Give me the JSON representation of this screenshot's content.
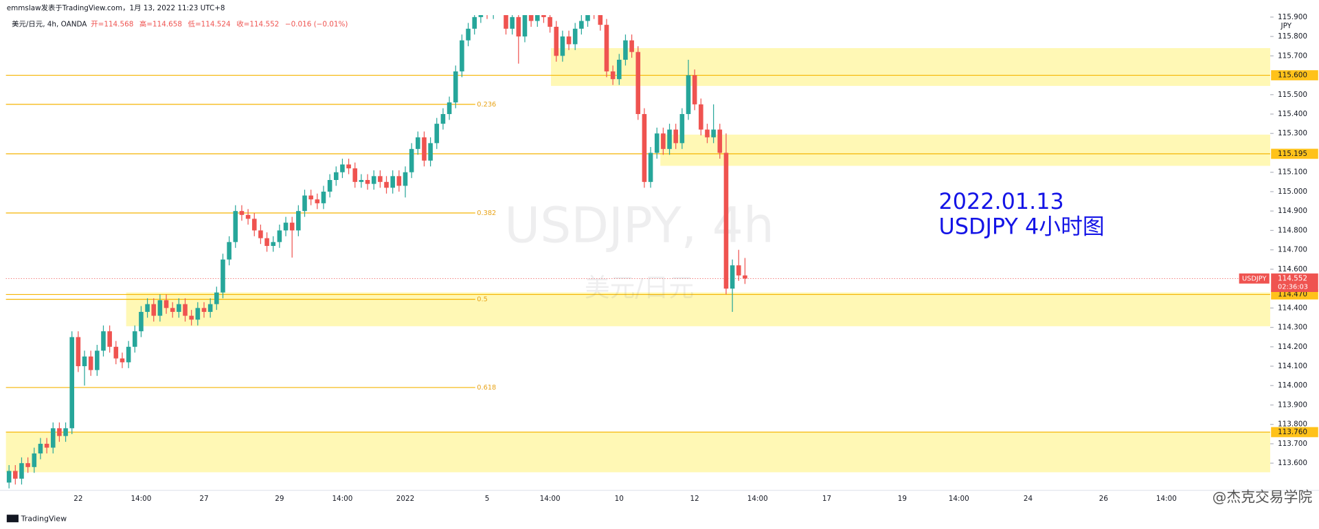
{
  "chart_data": {
    "type": "candlestick",
    "header": "emmslaw发表于TradingView.com，1月 13, 2022 11:23 UTC+8",
    "legend": "美元/日元, 4h, OANDA",
    "ohlc_labels": [
      "开=114.568",
      "高=114.658",
      "低=114.524",
      "收=114.552",
      "−0.016 (−0.01%)"
    ],
    "watermark": "USDJPY, 4h",
    "watermark_sub": "美元/日元",
    "annotations": [
      "2022.01.13",
      "USDJPY 4小时图"
    ],
    "axis_unit": "JPY",
    "footer": "TradingView",
    "credit": "@杰克交易学院",
    "up_color": "#26a69a",
    "down_color": "#ef5350",
    "level_color": "#f5b400",
    "zone_color": "#fff7a8",
    "categories": [
      null,
      null,
      null,
      null,
      null,
      null,
      null,
      null,
      null,
      null,
      null,
      "22",
      null,
      null,
      null,
      null,
      null,
      null,
      null,
      null,
      null,
      "14:00",
      null,
      null,
      null,
      null,
      null,
      null,
      null,
      null,
      null,
      "27",
      null,
      null,
      null,
      null,
      null,
      null,
      null,
      null,
      null,
      null,
      null,
      "29",
      null,
      null,
      null,
      null,
      null,
      null,
      null,
      null,
      null,
      "14:00",
      null,
      null,
      null,
      null,
      null,
      null,
      null,
      null,
      null,
      "2022",
      null,
      null,
      null,
      null,
      null,
      null,
      null,
      null,
      null,
      null,
      null,
      null,
      "5",
      null,
      null,
      null,
      null,
      null,
      null,
      null,
      null,
      null,
      "14:00",
      null,
      null,
      null,
      null,
      null,
      null,
      null,
      null,
      null,
      null,
      "10",
      null,
      null,
      null,
      null,
      null,
      null,
      null,
      null,
      null,
      null,
      null,
      "12",
      null,
      null,
      null,
      null,
      null,
      null,
      null,
      null,
      null,
      "14:00",
      null,
      null,
      null,
      null,
      null,
      null,
      null,
      null,
      null,
      null,
      "17",
      null,
      null,
      null,
      null,
      null,
      null,
      null,
      null,
      null,
      null,
      null,
      "19",
      null,
      null,
      null,
      null,
      null,
      null,
      null,
      null,
      "14:00",
      null,
      null,
      null,
      null,
      null,
      null,
      null,
      null,
      null,
      null,
      "24",
      null,
      null,
      null,
      null,
      null,
      null,
      null,
      null,
      null,
      null,
      null,
      "26",
      null,
      null,
      null,
      null,
      null,
      null,
      null,
      null,
      null,
      "14:00",
      null,
      null,
      null,
      null,
      null,
      null,
      null,
      null,
      null,
      null,
      null,
      null,
      null,
      null,
      null,
      null
    ],
    "open": [
      113.5,
      113.56,
      113.52,
      113.6,
      113.58,
      113.65,
      113.7,
      113.68,
      113.78,
      113.74,
      113.78,
      114.25,
      114.1,
      114.15,
      114.08,
      114.18,
      114.28,
      114.2,
      114.14,
      114.12,
      114.2,
      114.28,
      114.38,
      114.42,
      114.36,
      114.44,
      114.4,
      114.38,
      114.42,
      114.36,
      114.34,
      114.4,
      114.38,
      114.42,
      114.48,
      114.65,
      114.74,
      114.9,
      114.88,
      114.86,
      114.8,
      114.76,
      114.72,
      114.74,
      114.8,
      114.84,
      114.8,
      114.9,
      114.98,
      114.96,
      114.94,
      115.0,
      115.06,
      115.1,
      115.14,
      115.12,
      115.05,
      115.06,
      115.04,
      115.08,
      115.05,
      115.02,
      115.08,
      115.03,
      115.1,
      115.22,
      115.28,
      115.16,
      115.25,
      115.35,
      115.4,
      115.46,
      115.62,
      115.78,
      115.84,
      115.9,
      115.95,
      115.92,
      115.96,
      115.94,
      115.84,
      115.9,
      115.8,
      115.92,
      115.88,
      115.98,
      115.9,
      115.85,
      115.7,
      115.8,
      115.76,
      115.84,
      115.88,
      115.94,
      115.92,
      115.86,
      115.62,
      115.58,
      115.68,
      115.78,
      115.72,
      115.4,
      115.05,
      115.2,
      115.3,
      115.22,
      115.32,
      115.25,
      115.4,
      115.6,
      115.45,
      115.32,
      115.28,
      115.32,
      115.2,
      114.5,
      114.62,
      114.568,
      null,
      null,
      null,
      null,
      null,
      null,
      null,
      null,
      null,
      null,
      null,
      null,
      null,
      null,
      null,
      null,
      null,
      null,
      null,
      null,
      null,
      null,
      null,
      null,
      null,
      null,
      null,
      null,
      null,
      null,
      null,
      null,
      null,
      null,
      null,
      null,
      null,
      null,
      null,
      null,
      null,
      null,
      null,
      null,
      null,
      null,
      null,
      null,
      null,
      null,
      null,
      null,
      null,
      null,
      null,
      null,
      null,
      null,
      null,
      null,
      null,
      null,
      null,
      null,
      null,
      null,
      null,
      null,
      null,
      null,
      null,
      null,
      null,
      null,
      null,
      null,
      null,
      null,
      null,
      null,
      null,
      null,
      null
    ],
    "high": [
      113.59,
      113.59,
      113.63,
      113.63,
      113.68,
      113.73,
      113.73,
      113.81,
      113.81,
      113.81,
      114.28,
      114.28,
      114.18,
      114.18,
      114.21,
      114.31,
      114.31,
      114.23,
      114.17,
      114.23,
      114.31,
      114.41,
      114.45,
      114.45,
      114.47,
      114.47,
      114.43,
      114.45,
      114.45,
      114.39,
      114.43,
      114.43,
      114.45,
      114.51,
      114.68,
      114.77,
      114.93,
      114.93,
      114.91,
      114.89,
      114.83,
      114.79,
      114.77,
      114.83,
      114.87,
      114.87,
      114.93,
      115.01,
      115.01,
      114.99,
      115.03,
      115.09,
      115.13,
      115.17,
      115.17,
      115.15,
      115.09,
      115.09,
      115.11,
      115.11,
      115.08,
      115.11,
      115.11,
      115.13,
      115.25,
      115.31,
      115.31,
      115.28,
      115.38,
      115.43,
      115.49,
      115.65,
      115.81,
      115.87,
      115.93,
      115.98,
      115.98,
      115.99,
      115.99,
      115.97,
      115.93,
      115.93,
      115.95,
      115.95,
      116.01,
      116.01,
      115.93,
      115.88,
      115.83,
      115.83,
      115.87,
      115.91,
      115.97,
      115.97,
      115.95,
      115.89,
      115.65,
      115.71,
      115.81,
      115.81,
      115.75,
      115.43,
      115.23,
      115.33,
      115.33,
      115.35,
      115.35,
      115.43,
      115.68,
      115.63,
      115.48,
      115.35,
      115.45,
      115.35,
      115.3,
      114.65,
      114.7,
      114.658,
      null,
      null,
      null,
      null,
      null,
      null,
      null,
      null,
      null,
      null,
      null,
      null,
      null,
      null,
      null,
      null,
      null,
      null,
      null,
      null,
      null,
      null,
      null,
      null,
      null,
      null,
      null,
      null,
      null,
      null,
      null,
      null,
      null,
      null,
      null,
      null,
      null,
      null,
      null,
      null,
      null,
      null,
      null,
      null,
      null,
      null,
      null,
      null,
      null,
      null,
      null,
      null,
      null,
      null,
      null,
      null,
      null,
      null,
      null,
      null,
      null,
      null,
      null,
      null,
      null,
      null,
      null,
      null,
      null,
      null,
      null,
      null,
      null,
      null,
      null,
      null,
      null,
      null,
      null,
      null,
      null,
      null,
      null
    ],
    "low": [
      113.47,
      113.49,
      113.49,
      113.55,
      113.55,
      113.62,
      113.65,
      113.65,
      113.71,
      113.71,
      113.75,
      114.07,
      114.0,
      114.05,
      114.05,
      114.15,
      114.17,
      114.11,
      114.09,
      114.09,
      114.17,
      114.25,
      114.35,
      114.33,
      114.33,
      114.37,
      114.35,
      114.35,
      114.33,
      114.31,
      114.31,
      114.35,
      114.35,
      114.39,
      114.45,
      114.62,
      114.71,
      114.85,
      114.83,
      114.77,
      114.73,
      114.69,
      114.69,
      114.71,
      114.77,
      114.66,
      114.77,
      114.87,
      114.93,
      114.91,
      114.91,
      114.97,
      115.03,
      115.07,
      115.09,
      115.02,
      115.02,
      115.01,
      115.01,
      115.02,
      114.99,
      114.99,
      115.0,
      114.97,
      115.07,
      115.19,
      115.13,
      115.13,
      115.22,
      115.32,
      115.37,
      115.43,
      115.59,
      115.75,
      115.81,
      115.87,
      115.89,
      115.89,
      115.91,
      115.81,
      115.81,
      115.66,
      115.77,
      115.85,
      115.85,
      115.87,
      115.82,
      115.67,
      115.67,
      115.73,
      115.73,
      115.81,
      115.85,
      115.89,
      115.83,
      115.59,
      115.55,
      115.55,
      115.65,
      115.69,
      115.37,
      115.02,
      115.02,
      115.17,
      115.19,
      115.19,
      115.22,
      115.22,
      115.37,
      115.42,
      115.29,
      115.25,
      115.25,
      115.17,
      114.47,
      114.38,
      114.54,
      114.524,
      null,
      null,
      null,
      null,
      null,
      null,
      null,
      null,
      null,
      null,
      null,
      null,
      null,
      null,
      null,
      null,
      null,
      null,
      null,
      null,
      null,
      null,
      null,
      null,
      null,
      null,
      null,
      null,
      null,
      null,
      null,
      null,
      null,
      null,
      null,
      null,
      null,
      null,
      null,
      null,
      null,
      null,
      null,
      null,
      null,
      null,
      null,
      null,
      null,
      null,
      null,
      null,
      null,
      null,
      null,
      null,
      null,
      null,
      null,
      null,
      null,
      null,
      null,
      null,
      null,
      null,
      null,
      null,
      null,
      null,
      null,
      null,
      null,
      null,
      null,
      null,
      null,
      null,
      null,
      null,
      null,
      null,
      null
    ],
    "close": [
      113.56,
      113.52,
      113.6,
      113.58,
      113.65,
      113.7,
      113.68,
      113.78,
      113.74,
      113.78,
      114.25,
      114.1,
      114.15,
      114.08,
      114.18,
      114.28,
      114.2,
      114.14,
      114.12,
      114.2,
      114.28,
      114.38,
      114.42,
      114.36,
      114.44,
      114.4,
      114.38,
      114.42,
      114.36,
      114.34,
      114.4,
      114.38,
      114.42,
      114.48,
      114.65,
      114.74,
      114.9,
      114.88,
      114.86,
      114.8,
      114.76,
      114.72,
      114.74,
      114.8,
      114.84,
      114.8,
      114.9,
      114.98,
      114.96,
      114.94,
      115.0,
      115.06,
      115.1,
      115.14,
      115.12,
      115.05,
      115.06,
      115.04,
      115.08,
      115.05,
      115.02,
      115.08,
      115.03,
      115.1,
      115.22,
      115.28,
      115.16,
      115.25,
      115.35,
      115.4,
      115.46,
      115.62,
      115.78,
      115.84,
      115.9,
      115.95,
      115.92,
      115.96,
      115.94,
      115.84,
      115.9,
      115.8,
      115.92,
      115.88,
      115.98,
      115.9,
      115.85,
      115.7,
      115.8,
      115.76,
      115.84,
      115.88,
      115.94,
      115.92,
      115.86,
      115.62,
      115.58,
      115.68,
      115.78,
      115.72,
      115.4,
      115.05,
      115.2,
      115.3,
      115.22,
      115.32,
      115.25,
      115.4,
      115.6,
      115.45,
      115.32,
      115.28,
      115.32,
      115.2,
      114.5,
      114.62,
      114.568,
      114.552,
      null,
      null,
      null,
      null,
      null,
      null,
      null,
      null,
      null,
      null,
      null,
      null,
      null,
      null,
      null,
      null,
      null,
      null,
      null,
      null,
      null,
      null,
      null,
      null,
      null,
      null,
      null,
      null,
      null,
      null,
      null,
      null,
      null,
      null,
      null,
      null,
      null,
      null,
      null,
      null,
      null,
      null,
      null,
      null,
      null,
      null,
      null,
      null,
      null,
      null,
      null,
      null,
      null,
      null,
      null,
      null,
      null,
      null,
      null,
      null,
      null,
      null,
      null,
      null,
      null,
      null,
      null,
      null,
      null,
      null,
      null,
      null,
      null,
      null,
      null,
      null,
      null,
      null,
      null,
      null,
      null,
      null,
      null
    ],
    "ylim": [
      113.46,
      115.91
    ],
    "yticks": [
      {
        "value": 115.9,
        "label": "115.900"
      },
      {
        "value": 115.8,
        "label": "115.800"
      },
      {
        "value": 115.7,
        "label": "115.700"
      },
      {
        "value": 115.5,
        "label": "115.500"
      },
      {
        "value": 115.4,
        "label": "115.400"
      },
      {
        "value": 115.3,
        "label": "115.300"
      },
      {
        "value": 115.1,
        "label": "115.100"
      },
      {
        "value": 115.0,
        "label": "115.000"
      },
      {
        "value": 114.9,
        "label": "114.900"
      },
      {
        "value": 114.8,
        "label": "114.800"
      },
      {
        "value": 114.7,
        "label": "114.700"
      },
      {
        "value": 114.6,
        "label": "114.600"
      },
      {
        "value": 114.4,
        "label": "114.400"
      },
      {
        "value": 114.3,
        "label": "114.300"
      },
      {
        "value": 114.2,
        "label": "114.200"
      },
      {
        "value": 114.1,
        "label": "114.100"
      },
      {
        "value": 114.0,
        "label": "114.000"
      },
      {
        "value": 113.9,
        "label": "113.900"
      },
      {
        "value": 113.8,
        "label": "113.800"
      },
      {
        "value": 113.7,
        "label": "113.700"
      },
      {
        "value": 113.6,
        "label": "113.600"
      }
    ],
    "levels": [
      {
        "value": 115.6,
        "label": "115.600"
      },
      {
        "value": 115.195,
        "label": "115.195"
      },
      {
        "value": 114.47,
        "label": "114.470"
      },
      {
        "value": 113.76,
        "label": "113.760"
      }
    ],
    "fib": [
      {
        "value": 115.45,
        "label": "0.236"
      },
      {
        "value": 114.89,
        "label": "0.382"
      },
      {
        "value": 114.445,
        "label": "0.5"
      },
      {
        "value": 113.99,
        "label": "0.618"
      }
    ],
    "zones": [
      [
        115.545,
        115.74
      ],
      [
        115.133,
        115.294
      ],
      [
        114.306,
        114.48
      ],
      [
        113.553,
        113.76
      ]
    ],
    "last_price": {
      "value": 114.552,
      "label": "114.552",
      "symbol": "USDJPY",
      "countdown": "02:36:03"
    }
  }
}
